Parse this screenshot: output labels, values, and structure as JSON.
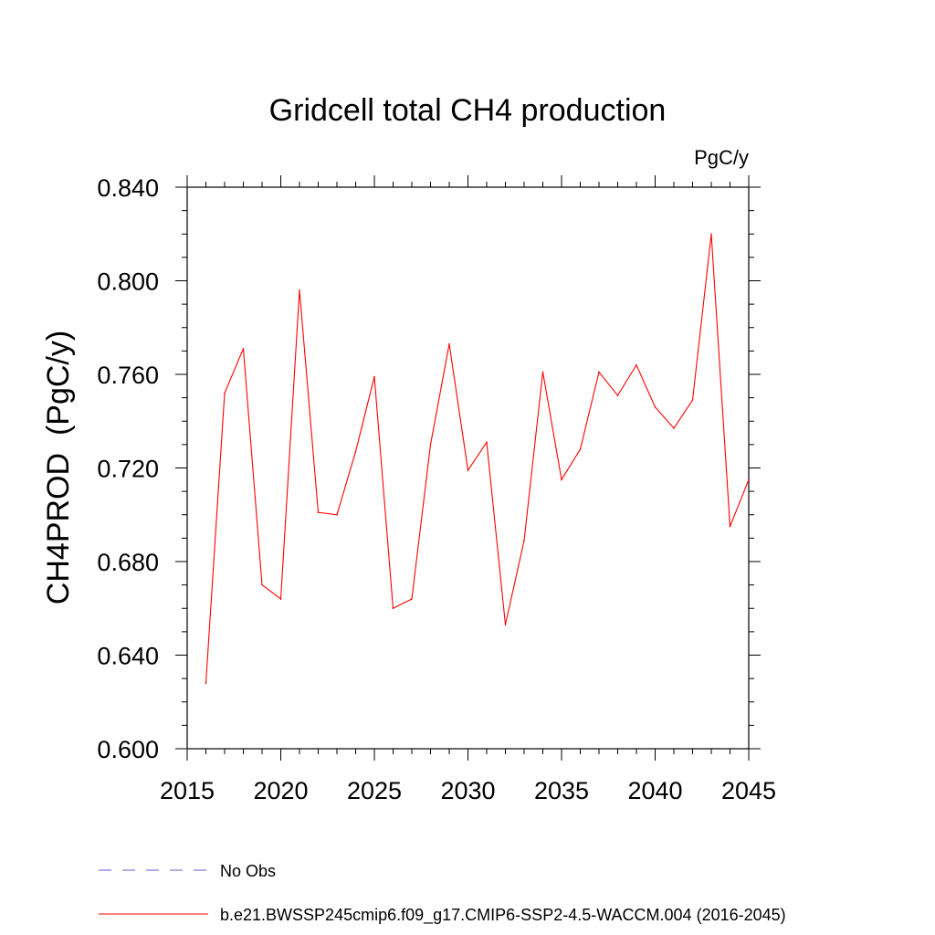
{
  "chart_data": {
    "type": "line",
    "title": "Gridcell total CH4 production",
    "units_label": "PgC/y",
    "ylabel": "CH4PROD  (PgC/y)",
    "xlabel": "",
    "xlim": [
      2015,
      2045
    ],
    "ylim": [
      0.6,
      0.84
    ],
    "xticks": [
      2015,
      2020,
      2025,
      2030,
      2035,
      2040,
      2045
    ],
    "xtick_labels": [
      "2015",
      "2020",
      "2025",
      "2030",
      "2035",
      "2040",
      "2045"
    ],
    "yticks": [
      0.6,
      0.64,
      0.68,
      0.72,
      0.76,
      0.8,
      0.84
    ],
    "ytick_labels": [
      "0.600",
      "0.640",
      "0.680",
      "0.720",
      "0.760",
      "0.800",
      "0.840"
    ],
    "grid": false,
    "legend_position": "bottom",
    "series": [
      {
        "name": "b.e21.BWSSP245cmip6.f09_g17.CMIP6-SSP2-4.5-WACCM.004 (2016-2045)",
        "color": "#ff0000",
        "style": "solid",
        "x": [
          2016,
          2017,
          2018,
          2019,
          2020,
          2021,
          2022,
          2023,
          2024,
          2025,
          2026,
          2027,
          2028,
          2029,
          2030,
          2031,
          2032,
          2033,
          2034,
          2035,
          2036,
          2037,
          2038,
          2039,
          2040,
          2041,
          2042,
          2043,
          2044,
          2045
        ],
        "values": [
          0.628,
          0.752,
          0.771,
          0.67,
          0.664,
          0.796,
          0.701,
          0.7,
          0.727,
          0.759,
          0.66,
          0.664,
          0.73,
          0.773,
          0.719,
          0.731,
          0.653,
          0.689,
          0.761,
          0.715,
          0.728,
          0.761,
          0.751,
          0.764,
          0.746,
          0.737,
          0.749,
          0.82,
          0.695,
          0.715
        ]
      },
      {
        "name": "No Obs",
        "color": "#6a5acd",
        "style": "dashed",
        "x": [],
        "values": []
      }
    ]
  }
}
